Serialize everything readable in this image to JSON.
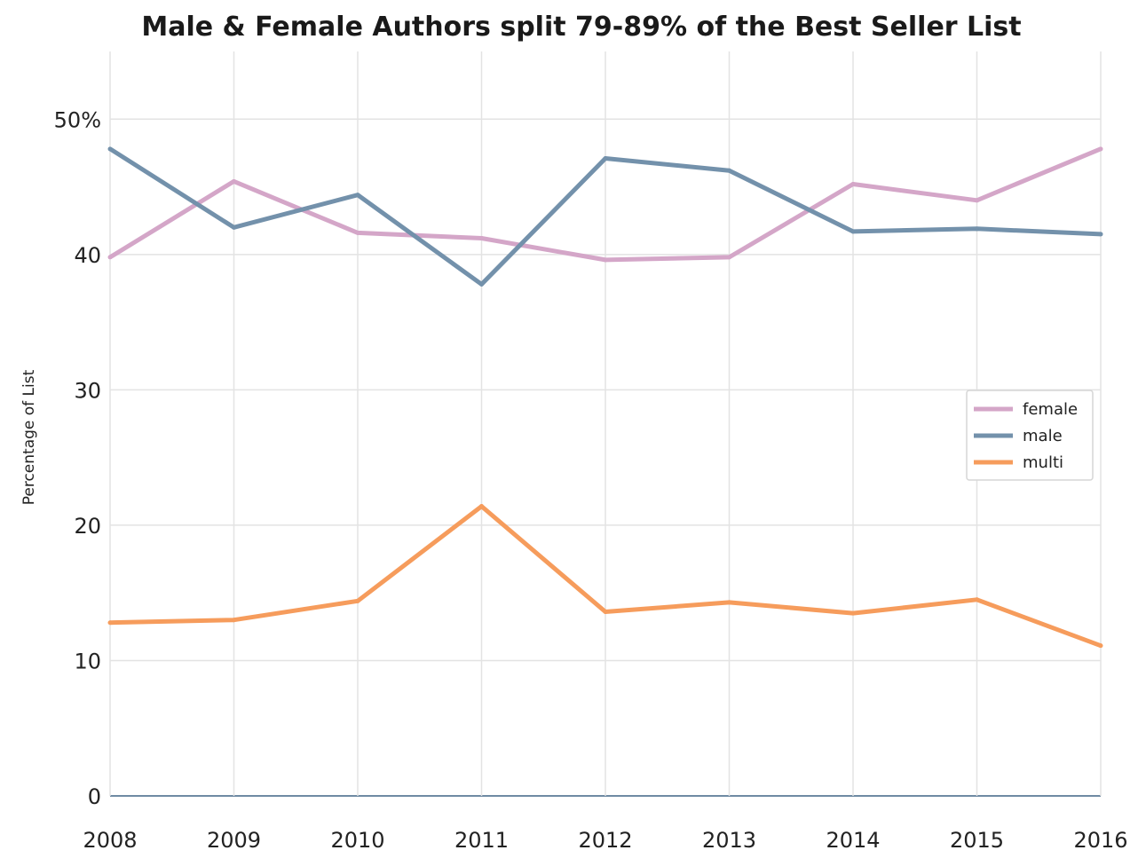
{
  "chart_data": {
    "type": "line",
    "title": "Male & Female Authors split 79-89% of the Best Seller List",
    "ylabel": "Percentage of List",
    "xlabel": "",
    "x": [
      2008,
      2009,
      2010,
      2011,
      2012,
      2013,
      2014,
      2015,
      2016
    ],
    "x_tick_labels": [
      "2008",
      "2009",
      "2010",
      "2011",
      "2012",
      "2013",
      "2014",
      "2015",
      "2016"
    ],
    "y_ticks": [
      0,
      10,
      20,
      30,
      40,
      50
    ],
    "y_tick_labels": [
      "0",
      "10",
      "20",
      "30",
      "40",
      "50%"
    ],
    "xlim": [
      2008,
      2016
    ],
    "ylim": [
      0,
      55
    ],
    "grid": true,
    "legend_position": "right",
    "series": [
      {
        "name": "female",
        "color": "#d4a6c8",
        "values": [
          39.8,
          45.4,
          41.6,
          41.2,
          39.6,
          39.8,
          45.2,
          44.0,
          47.8
        ]
      },
      {
        "name": "male",
        "color": "#7391ab",
        "values": [
          47.8,
          42.0,
          44.4,
          37.8,
          47.1,
          46.2,
          41.7,
          41.9,
          41.5
        ]
      },
      {
        "name": "multi",
        "color": "#f69c5c",
        "values": [
          12.8,
          13.0,
          14.4,
          21.4,
          13.6,
          14.3,
          13.5,
          14.5,
          11.1
        ]
      }
    ]
  }
}
